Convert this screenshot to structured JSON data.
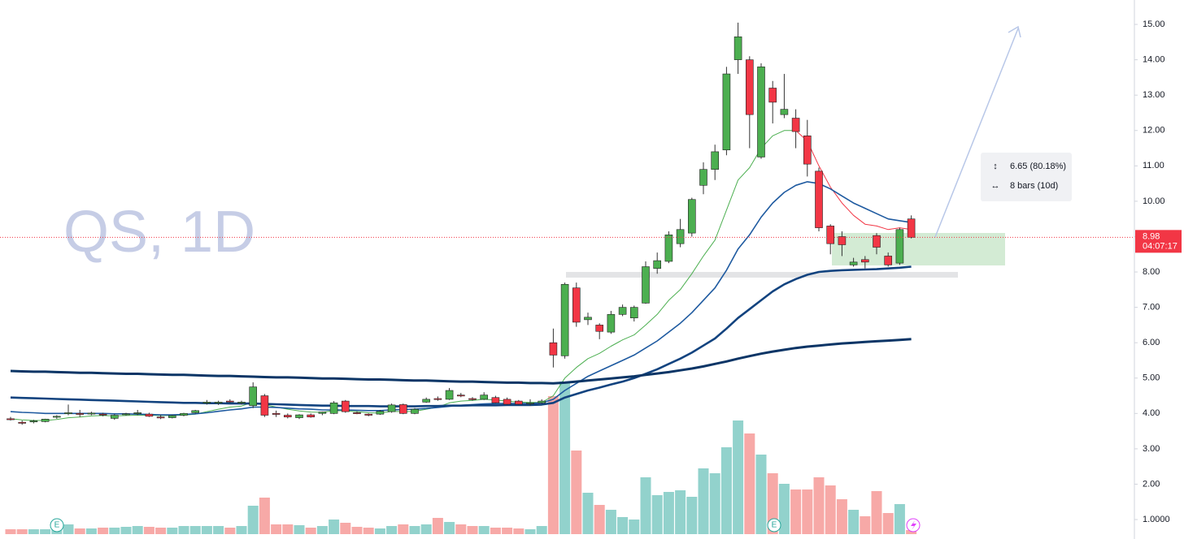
{
  "chart_data": {
    "type": "candlestick",
    "watermark": "QS, 1D",
    "ylim": [
      0.45,
      15.69
    ],
    "yticks": [
      {
        "value": 15,
        "label": "15.00"
      },
      {
        "value": 14,
        "label": "14.00"
      },
      {
        "value": 13,
        "label": "13.00"
      },
      {
        "value": 12,
        "label": "12.00"
      },
      {
        "value": 11,
        "label": "11.00"
      },
      {
        "value": 10,
        "label": "10.00"
      },
      {
        "value": 9,
        "label": "9.00"
      },
      {
        "value": 8,
        "label": "8.00"
      },
      {
        "value": 7,
        "label": "7.00"
      },
      {
        "value": 6,
        "label": "6.00"
      },
      {
        "value": 5,
        "label": "5.00"
      },
      {
        "value": 4,
        "label": "4.00"
      },
      {
        "value": 3,
        "label": "3.00"
      },
      {
        "value": 2,
        "label": "2.00"
      },
      {
        "value": 1,
        "label": "1.0000"
      }
    ],
    "up_color": "#4caf50",
    "down_color": "#f23645",
    "volume_up_color": "#92d2cc",
    "volume_down_color": "#f7a9a7",
    "current_price": 8.98,
    "countdown": "04:07:17",
    "measure": {
      "price_change": "6.65 (80.18%)",
      "bars": "8 bars (10d)"
    },
    "earnings_labels": [
      "E",
      "E"
    ],
    "candles": [
      {
        "open": 3.85,
        "high": 3.9,
        "low": 3.8,
        "close": 3.83
      },
      {
        "open": 3.75,
        "high": 3.8,
        "low": 3.68,
        "close": 3.74
      },
      {
        "open": 3.76,
        "high": 3.82,
        "low": 3.72,
        "close": 3.79
      },
      {
        "open": 3.77,
        "high": 3.85,
        "low": 3.75,
        "close": 3.84
      },
      {
        "open": 3.9,
        "high": 3.95,
        "low": 3.85,
        "close": 3.92
      },
      {
        "open": 4.0,
        "high": 4.25,
        "low": 3.95,
        "close": 4.02
      },
      {
        "open": 4.0,
        "high": 4.1,
        "low": 3.9,
        "close": 3.98
      },
      {
        "open": 4.0,
        "high": 4.05,
        "low": 3.95,
        "close": 4.01
      },
      {
        "open": 3.98,
        "high": 4.02,
        "low": 3.92,
        "close": 3.96
      },
      {
        "open": 3.86,
        "high": 3.98,
        "low": 3.82,
        "close": 3.95
      },
      {
        "open": 3.98,
        "high": 4.02,
        "low": 3.94,
        "close": 3.99
      },
      {
        "open": 4.0,
        "high": 4.1,
        "low": 3.95,
        "close": 4.02
      },
      {
        "open": 3.98,
        "high": 4.02,
        "low": 3.9,
        "close": 3.92
      },
      {
        "open": 3.9,
        "high": 3.96,
        "low": 3.84,
        "close": 3.88
      },
      {
        "open": 3.88,
        "high": 3.96,
        "low": 3.86,
        "close": 3.94
      },
      {
        "open": 3.95,
        "high": 4.02,
        "low": 3.92,
        "close": 4.0
      },
      {
        "open": 4.02,
        "high": 4.1,
        "low": 4.0,
        "close": 4.08
      },
      {
        "open": 4.3,
        "high": 4.38,
        "low": 4.25,
        "close": 4.32
      },
      {
        "open": 4.3,
        "high": 4.36,
        "low": 4.24,
        "close": 4.32
      },
      {
        "open": 4.35,
        "high": 4.4,
        "low": 4.3,
        "close": 4.33
      },
      {
        "open": 4.3,
        "high": 4.36,
        "low": 4.25,
        "close": 4.32
      },
      {
        "open": 4.22,
        "high": 4.88,
        "low": 4.15,
        "close": 4.75
      },
      {
        "open": 4.5,
        "high": 4.55,
        "low": 3.9,
        "close": 3.95
      },
      {
        "open": 4.0,
        "high": 4.08,
        "low": 3.9,
        "close": 3.98
      },
      {
        "open": 3.95,
        "high": 4.0,
        "low": 3.86,
        "close": 3.9
      },
      {
        "open": 3.88,
        "high": 3.98,
        "low": 3.84,
        "close": 3.96
      },
      {
        "open": 3.96,
        "high": 4.0,
        "low": 3.88,
        "close": 3.9
      },
      {
        "open": 4.0,
        "high": 4.05,
        "low": 3.95,
        "close": 4.04
      },
      {
        "open": 4.0,
        "high": 4.35,
        "low": 3.98,
        "close": 4.3
      },
      {
        "open": 4.35,
        "high": 4.38,
        "low": 4.02,
        "close": 4.05
      },
      {
        "open": 4.02,
        "high": 4.06,
        "low": 3.98,
        "close": 4.0
      },
      {
        "open": 3.98,
        "high": 4.0,
        "low": 3.92,
        "close": 3.95
      },
      {
        "open": 3.98,
        "high": 4.1,
        "low": 3.96,
        "close": 4.06
      },
      {
        "open": 4.05,
        "high": 4.28,
        "low": 4.02,
        "close": 4.24
      },
      {
        "open": 4.25,
        "high": 4.28,
        "low": 3.98,
        "close": 4.0
      },
      {
        "open": 4.0,
        "high": 4.15,
        "low": 3.98,
        "close": 4.12
      },
      {
        "open": 4.32,
        "high": 4.45,
        "low": 4.3,
        "close": 4.4
      },
      {
        "open": 4.42,
        "high": 4.48,
        "low": 4.36,
        "close": 4.4
      },
      {
        "open": 4.4,
        "high": 4.72,
        "low": 4.38,
        "close": 4.65
      },
      {
        "open": 4.52,
        "high": 4.58,
        "low": 4.46,
        "close": 4.5
      },
      {
        "open": 4.42,
        "high": 4.46,
        "low": 4.36,
        "close": 4.4
      },
      {
        "open": 4.4,
        "high": 4.6,
        "low": 4.38,
        "close": 4.52
      },
      {
        "open": 4.45,
        "high": 4.5,
        "low": 4.28,
        "close": 4.3
      },
      {
        "open": 4.4,
        "high": 4.45,
        "low": 4.24,
        "close": 4.26
      },
      {
        "open": 4.35,
        "high": 4.38,
        "low": 4.24,
        "close": 4.26
      },
      {
        "open": 4.28,
        "high": 4.4,
        "low": 4.22,
        "close": 4.3
      },
      {
        "open": 4.3,
        "high": 4.4,
        "low": 4.28,
        "close": 4.35
      },
      {
        "open": 6.0,
        "high": 6.4,
        "low": 5.3,
        "close": 5.65
      },
      {
        "open": 5.63,
        "high": 7.7,
        "low": 5.55,
        "close": 7.65
      },
      {
        "open": 7.55,
        "high": 7.7,
        "low": 6.45,
        "close": 6.58
      },
      {
        "open": 6.65,
        "high": 6.85,
        "low": 6.5,
        "close": 6.72
      },
      {
        "open": 6.5,
        "high": 6.55,
        "low": 6.1,
        "close": 6.32
      },
      {
        "open": 6.3,
        "high": 6.9,
        "low": 6.25,
        "close": 6.8
      },
      {
        "open": 6.8,
        "high": 7.08,
        "low": 6.75,
        "close": 7.0
      },
      {
        "open": 6.7,
        "high": 7.05,
        "low": 6.6,
        "close": 7.0
      },
      {
        "open": 7.12,
        "high": 8.3,
        "low": 7.1,
        "close": 8.15
      },
      {
        "open": 8.1,
        "high": 8.55,
        "low": 7.95,
        "close": 8.32
      },
      {
        "open": 8.3,
        "high": 9.15,
        "low": 8.25,
        "close": 9.05
      },
      {
        "open": 8.8,
        "high": 9.5,
        "low": 8.7,
        "close": 9.2
      },
      {
        "open": 9.1,
        "high": 10.1,
        "low": 9.0,
        "close": 10.05
      },
      {
        "open": 10.45,
        "high": 11.1,
        "low": 10.2,
        "close": 10.9
      },
      {
        "open": 10.9,
        "high": 11.6,
        "low": 10.6,
        "close": 11.4
      },
      {
        "open": 11.45,
        "high": 13.8,
        "low": 11.3,
        "close": 13.6
      },
      {
        "open": 14.0,
        "high": 15.05,
        "low": 13.6,
        "close": 14.65
      },
      {
        "open": 14.0,
        "high": 14.1,
        "low": 11.5,
        "close": 12.45
      },
      {
        "open": 11.25,
        "high": 13.9,
        "low": 11.2,
        "close": 13.8
      },
      {
        "open": 13.2,
        "high": 13.4,
        "low": 12.2,
        "close": 12.8
      },
      {
        "open": 12.45,
        "high": 13.6,
        "low": 12.35,
        "close": 12.6
      },
      {
        "open": 12.35,
        "high": 12.6,
        "low": 11.5,
        "close": 11.97
      },
      {
        "open": 11.85,
        "high": 12.3,
        "low": 10.7,
        "close": 11.05
      },
      {
        "open": 10.85,
        "high": 10.95,
        "low": 9.15,
        "close": 9.25
      },
      {
        "open": 9.3,
        "high": 9.35,
        "low": 8.5,
        "close": 8.8
      },
      {
        "open": 9.0,
        "high": 9.15,
        "low": 8.45,
        "close": 8.77
      },
      {
        "open": 8.2,
        "high": 8.4,
        "low": 8.15,
        "close": 8.28
      },
      {
        "open": 8.35,
        "high": 8.45,
        "low": 8.1,
        "close": 8.28
      },
      {
        "open": 9.03,
        "high": 9.1,
        "low": 8.5,
        "close": 8.7
      },
      {
        "open": 8.45,
        "high": 8.55,
        "low": 8.15,
        "close": 8.2
      },
      {
        "open": 8.25,
        "high": 9.25,
        "low": 8.2,
        "close": 9.2
      },
      {
        "open": 9.5,
        "high": 9.6,
        "low": 8.95,
        "close": 8.98
      }
    ],
    "volume_ylim": [
      0,
      200
    ],
    "volume": [
      6,
      6,
      6,
      6,
      7,
      12,
      7,
      7,
      8,
      8,
      9,
      10,
      9,
      8,
      8,
      10,
      10,
      10,
      10,
      8,
      10,
      35,
      45,
      12,
      12,
      11,
      8,
      10,
      18,
      14,
      9,
      8,
      7,
      10,
      12,
      10,
      12,
      20,
      15,
      12,
      10,
      10,
      8,
      8,
      7,
      6,
      10,
      170,
      188,
      103,
      51,
      36,
      30,
      21,
      18,
      70,
      48,
      52,
      54,
      46,
      81,
      75,
      107,
      140,
      124,
      98,
      75,
      62,
      55,
      55,
      70,
      60,
      43,
      30,
      22,
      53,
      26,
      37,
      5
    ],
    "series": [
      {
        "color": "#4caf50",
        "values": [
          3.85,
          3.82,
          3.8,
          3.8,
          3.83,
          3.88,
          3.9,
          3.93,
          3.94,
          3.93,
          3.94,
          3.95,
          3.95,
          3.94,
          3.94,
          3.95,
          3.98,
          4.05,
          4.12,
          4.18,
          4.21,
          4.32,
          4.25,
          4.18,
          4.12,
          4.07,
          4.04,
          4.03,
          4.08,
          4.07,
          4.05,
          4.02,
          4.01,
          4.06,
          4.05,
          4.06,
          4.12,
          4.18,
          4.3,
          4.35,
          4.37,
          4.4,
          4.38,
          4.35,
          4.32,
          4.31,
          4.31,
          4.5,
          5.0,
          5.3,
          5.55,
          5.7,
          5.9,
          6.08,
          6.22,
          6.5,
          6.8,
          7.2,
          7.5,
          7.95,
          8.45,
          8.9,
          9.75,
          10.6,
          10.95,
          11.5,
          11.85,
          12.0,
          12.0,
          null,
          null,
          null,
          null,
          null,
          null,
          null,
          null,
          null,
          null
        ]
      },
      {
        "color": "#f23645",
        "values": [
          null,
          null,
          null,
          null,
          null,
          null,
          null,
          null,
          null,
          null,
          null,
          null,
          null,
          null,
          null,
          null,
          null,
          null,
          null,
          null,
          null,
          null,
          null,
          null,
          null,
          null,
          null,
          null,
          null,
          null,
          null,
          null,
          null,
          null,
          null,
          null,
          null,
          null,
          null,
          null,
          null,
          null,
          null,
          null,
          null,
          null,
          null,
          null,
          null,
          null,
          null,
          null,
          null,
          null,
          null,
          null,
          null,
          null,
          null,
          null,
          null,
          null,
          null,
          null,
          null,
          null,
          null,
          null,
          12.0,
          11.7,
          11.0,
          10.4,
          9.95,
          9.6,
          9.35,
          9.3,
          9.2,
          9.25,
          9.2
        ]
      },
      {
        "color": "#1e5aa0",
        "values": [
          4.05,
          4.03,
          4.02,
          4.0,
          4.0,
          4.0,
          4.0,
          4.0,
          4.0,
          3.99,
          3.99,
          3.98,
          3.97,
          3.96,
          3.96,
          3.97,
          3.99,
          4.02,
          4.06,
          4.1,
          4.13,
          4.18,
          4.18,
          4.17,
          4.15,
          4.13,
          4.12,
          4.1,
          4.1,
          4.1,
          4.09,
          4.08,
          4.08,
          4.1,
          4.11,
          4.12,
          4.14,
          4.17,
          4.2,
          4.23,
          4.25,
          4.27,
          4.28,
          4.28,
          4.28,
          4.28,
          4.3,
          4.4,
          4.65,
          4.85,
          5.05,
          5.2,
          5.35,
          5.5,
          5.65,
          5.85,
          6.05,
          6.3,
          6.55,
          6.85,
          7.2,
          7.55,
          8.05,
          8.65,
          9.05,
          9.55,
          9.95,
          10.25,
          10.45,
          10.55,
          10.5,
          10.35,
          10.15,
          9.95,
          9.8,
          9.65,
          9.5,
          9.45,
          9.4
        ]
      },
      {
        "color": "#12437f",
        "values": [
          4.45,
          4.44,
          4.43,
          4.42,
          4.41,
          4.4,
          4.39,
          4.38,
          4.37,
          4.36,
          4.35,
          4.34,
          4.33,
          4.32,
          4.31,
          4.3,
          4.3,
          4.29,
          4.29,
          4.28,
          4.28,
          4.28,
          4.27,
          4.26,
          4.25,
          4.24,
          4.23,
          4.22,
          4.22,
          4.21,
          4.21,
          4.21,
          4.2,
          4.2,
          4.2,
          4.2,
          4.21,
          4.21,
          4.22,
          4.22,
          4.23,
          4.23,
          4.23,
          4.24,
          4.24,
          4.24,
          4.25,
          4.3,
          4.45,
          4.55,
          4.65,
          4.73,
          4.82,
          4.9,
          5.0,
          5.12,
          5.25,
          5.4,
          5.55,
          5.72,
          5.92,
          6.12,
          6.4,
          6.7,
          6.95,
          7.2,
          7.45,
          7.65,
          7.8,
          7.92,
          8.0,
          8.03,
          8.05,
          8.06,
          8.07,
          8.08,
          8.1,
          8.12,
          8.15
        ]
      },
      {
        "color": "#0b3566",
        "values": [
          5.2,
          5.19,
          5.18,
          5.18,
          5.17,
          5.16,
          5.15,
          5.15,
          5.14,
          5.13,
          5.12,
          5.12,
          5.11,
          5.1,
          5.09,
          5.09,
          5.08,
          5.07,
          5.06,
          5.06,
          5.05,
          5.04,
          5.03,
          5.02,
          5.02,
          5.01,
          5.0,
          4.99,
          4.99,
          4.98,
          4.97,
          4.96,
          4.96,
          4.95,
          4.94,
          4.93,
          4.93,
          4.92,
          4.91,
          4.9,
          4.9,
          4.89,
          4.88,
          4.87,
          4.87,
          4.86,
          4.86,
          4.85,
          4.87,
          4.9,
          4.93,
          4.96,
          4.99,
          5.02,
          5.05,
          5.09,
          5.13,
          5.17,
          5.22,
          5.27,
          5.33,
          5.4,
          5.47,
          5.55,
          5.62,
          5.69,
          5.75,
          5.8,
          5.85,
          5.89,
          5.92,
          5.95,
          5.98,
          6.0,
          6.02,
          6.04,
          6.06,
          6.08,
          6.1
        ]
      }
    ]
  }
}
